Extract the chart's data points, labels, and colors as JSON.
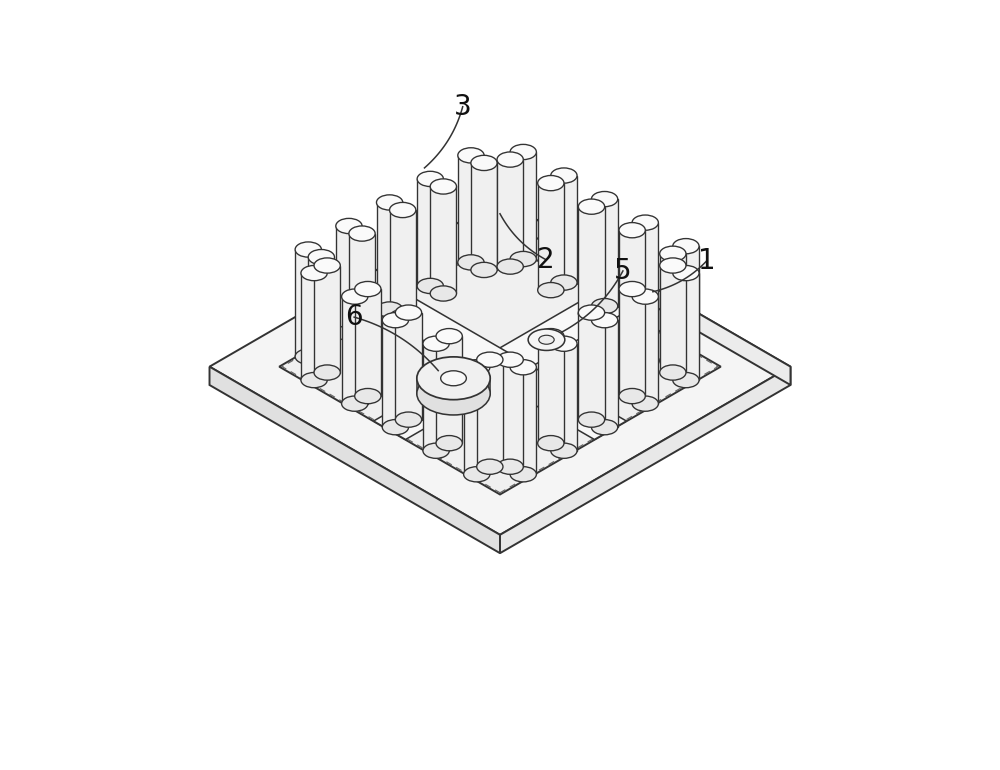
{
  "background_color": "#ffffff",
  "fig_width": 10.0,
  "fig_height": 7.7,
  "label_fontsize": 20,
  "line_color": "#333333",
  "line_width": 1.4,
  "fill_color": "#ffffff",
  "cylinder_fill": "#f8f8f8",
  "cylinder_shade": "#e8e8e8",
  "plate_fill": "#f5f5f5",
  "plate_edge": "#444444",
  "inner_fill": "#f0f0f0",
  "cross_fill": "#fafafa",
  "dashed_color": "#666666"
}
